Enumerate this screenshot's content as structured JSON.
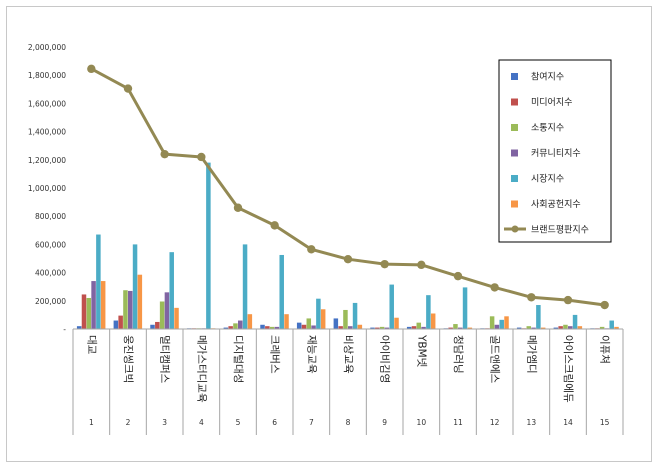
{
  "chart_data": {
    "type": "bar",
    "title": "",
    "xlabel": "",
    "ylabel": "",
    "ylim": [
      0,
      2000000
    ],
    "yticks": [
      0,
      200000,
      400000,
      600000,
      800000,
      1000000,
      1200000,
      1400000,
      1600000,
      1800000,
      2000000
    ],
    "ytick_labels": [
      "-",
      "200,000",
      "400,000",
      "600,000",
      "800,000",
      "1,000,000",
      "1,200,000",
      "1,400,000",
      "1,600,000",
      "1,800,000",
      "2,000,000"
    ],
    "legend_position": "top-right",
    "categories": [
      "대교",
      "웅진씽크빅",
      "멀티캠퍼스",
      "메가스터디교육",
      "디지털대성",
      "크레버스",
      "재능교육",
      "비상교육",
      "아이비김영",
      "YBM넷",
      "청담러닝",
      "골드앤에스",
      "메가엠디",
      "아이스크림에듀",
      "이퓨쳐"
    ],
    "ranks": [
      "1",
      "2",
      "3",
      "4",
      "5",
      "6",
      "7",
      "8",
      "9",
      "10",
      "11",
      "12",
      "13",
      "14",
      "15"
    ],
    "series": [
      {
        "name": "참여지수",
        "color": "#4472C4",
        "values": [
          20000,
          60000,
          30000,
          5000,
          10000,
          30000,
          45000,
          75000,
          10000,
          15000,
          5000,
          5000,
          10000,
          10000,
          5000
        ]
      },
      {
        "name": "미디어지수",
        "color": "#C0504D",
        "values": [
          245000,
          95000,
          50000,
          5000,
          20000,
          20000,
          30000,
          20000,
          10000,
          20000,
          10000,
          5000,
          5000,
          20000,
          5000
        ]
      },
      {
        "name": "소통지수",
        "color": "#9BBB59",
        "values": [
          220000,
          275000,
          195000,
          5000,
          40000,
          15000,
          75000,
          135000,
          15000,
          45000,
          35000,
          90000,
          20000,
          30000,
          15000
        ]
      },
      {
        "name": "커뮤니티지수",
        "color": "#8064A2",
        "values": [
          340000,
          270000,
          260000,
          5000,
          60000,
          15000,
          25000,
          20000,
          10000,
          15000,
          10000,
          30000,
          10000,
          20000,
          5000
        ]
      },
      {
        "name": "시장지수",
        "color": "#4BACC6",
        "values": [
          670000,
          600000,
          545000,
          1180000,
          600000,
          525000,
          215000,
          185000,
          315000,
          240000,
          295000,
          65000,
          170000,
          100000,
          60000
        ]
      },
      {
        "name": "사회공헌지수",
        "color": "#F79646",
        "values": [
          340000,
          385000,
          150000,
          5000,
          105000,
          105000,
          140000,
          30000,
          80000,
          110000,
          10000,
          90000,
          10000,
          20000,
          15000
        ]
      }
    ],
    "line": {
      "name": "브랜드평판지수",
      "color": "#938953",
      "values": [
        1845000,
        1705000,
        1240000,
        1220000,
        860000,
        735000,
        565000,
        495000,
        460000,
        455000,
        375000,
        295000,
        225000,
        205000,
        170000
      ]
    }
  }
}
